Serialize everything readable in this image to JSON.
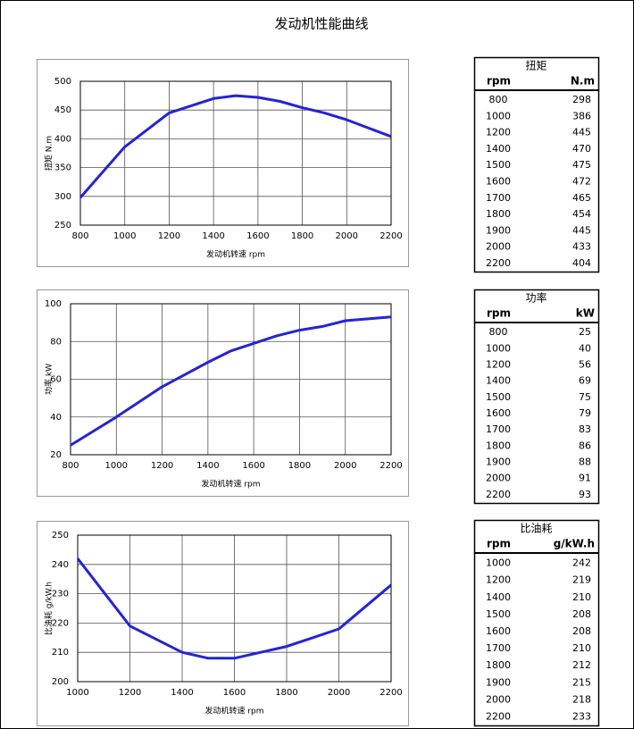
{
  "title": "发动机性能曲线",
  "chart_data": [
    {
      "type": "line",
      "xlabel": "发动机转速 rpm",
      "ylabel": "扭矩 N.m",
      "table_columns": [
        "rpm",
        "N.m"
      ],
      "x": [
        800,
        1000,
        1200,
        1400,
        1500,
        1600,
        1700,
        1800,
        1900,
        2000,
        2200
      ],
      "series": [
        {
          "name": "扭矩",
          "color": "#2424d4",
          "values": [
            298,
            386,
            445,
            470,
            475,
            472,
            465,
            454,
            445,
            433,
            404
          ]
        }
      ],
      "xlim": [
        800,
        2200
      ],
      "xticks": [
        800,
        1000,
        1200,
        1400,
        1600,
        1800,
        2000,
        2200
      ],
      "ylim": [
        250,
        500
      ],
      "yticks": [
        250,
        300,
        350,
        400,
        450,
        500
      ],
      "grid": true
    },
    {
      "type": "line",
      "xlabel": "发动机转速 rpm",
      "ylabel": "功率 kW",
      "table_columns": [
        "rpm",
        "kW"
      ],
      "x": [
        800,
        1000,
        1200,
        1400,
        1500,
        1600,
        1700,
        1800,
        1900,
        2000,
        2200
      ],
      "series": [
        {
          "name": "功率",
          "color": "#2424d4",
          "values": [
            25,
            40,
            56,
            69,
            75,
            79,
            83,
            86,
            88,
            91,
            93
          ]
        }
      ],
      "xlim": [
        800,
        2200
      ],
      "xticks": [
        800,
        1000,
        1200,
        1400,
        1600,
        1800,
        2000,
        2200
      ],
      "ylim": [
        20,
        100
      ],
      "yticks": [
        20,
        40,
        60,
        80,
        100
      ],
      "grid": true
    },
    {
      "type": "line",
      "xlabel": "发动机转速 rpm",
      "ylabel": "比油耗 g/kW.h",
      "table_columns": [
        "rpm",
        "g/kW.h"
      ],
      "x": [
        1000,
        1200,
        1400,
        1500,
        1600,
        1700,
        1800,
        1900,
        2000,
        2200
      ],
      "series": [
        {
          "name": "比油耗",
          "color": "#2424d4",
          "values": [
            242,
            219,
            210,
            208,
            208,
            210,
            212,
            215,
            218,
            233
          ]
        }
      ],
      "xlim": [
        1000,
        2200
      ],
      "xticks": [
        1000,
        1200,
        1400,
        1600,
        1800,
        2000,
        2200
      ],
      "ylim": [
        200,
        250
      ],
      "yticks": [
        200,
        210,
        220,
        230,
        240,
        250
      ],
      "grid": true
    }
  ]
}
